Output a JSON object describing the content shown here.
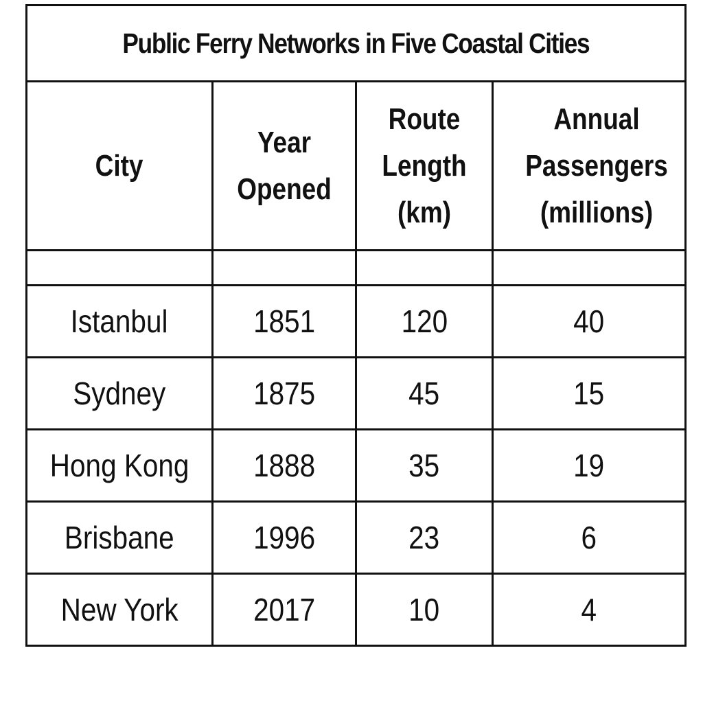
{
  "chart_data": {
    "type": "table",
    "title": "Public Ferry Networks in Five Coastal Cities",
    "columns": [
      "City",
      "Year Opened",
      "Route Length (km)",
      "Annual Passengers (millions)"
    ],
    "rows": [
      [
        "Istanbul",
        "1851",
        "120",
        "40"
      ],
      [
        "Sydney",
        "1875",
        "45",
        "15"
      ],
      [
        "Hong Kong",
        "1888",
        "35",
        "19"
      ],
      [
        "Brisbane",
        "1996",
        "23",
        "6"
      ],
      [
        "New York",
        "2017",
        "10",
        "4"
      ]
    ]
  }
}
